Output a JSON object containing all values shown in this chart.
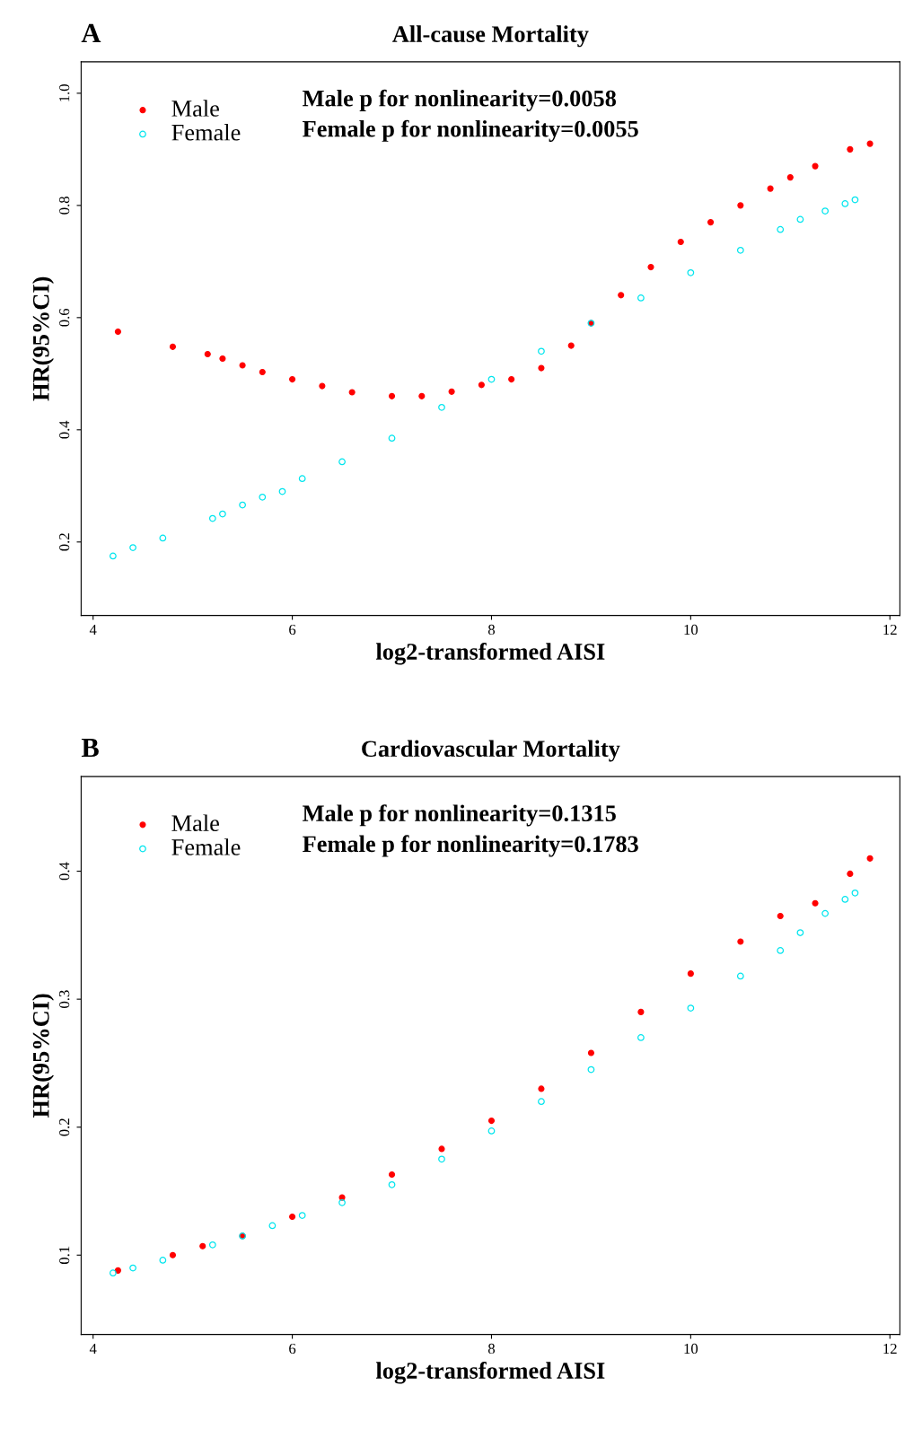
{
  "chart_data": [
    {
      "type": "scatter",
      "title": "All-cause Mortality",
      "xlabel": "log2-transformed AISI",
      "ylabel": "HR(95%CI)",
      "annotations": [
        "A",
        "Male p for nonlinearity=0.0058",
        "Female p for nonlinearity=0.0055"
      ],
      "series": [
        {
          "name": "Male",
          "color": "#ff0000",
          "x": [
            4.25,
            4.8,
            5.15,
            5.3,
            5.5,
            5.7,
            6.0,
            6.3,
            6.6,
            7.0,
            7.3,
            7.6,
            7.9,
            8.2,
            8.5,
            8.8,
            9.0,
            9.3,
            9.6,
            9.9,
            10.2,
            10.5,
            10.8,
            11.0,
            11.25,
            11.6,
            11.8
          ],
          "values": [
            0.575,
            0.548,
            0.535,
            0.527,
            0.515,
            0.503,
            0.49,
            0.478,
            0.467,
            0.46,
            0.46,
            0.468,
            0.48,
            0.49,
            0.51,
            0.55,
            0.59,
            0.64,
            0.69,
            0.735,
            0.77,
            0.8,
            0.83,
            0.85,
            0.87,
            0.9,
            0.91
          ]
        },
        {
          "name": "Female",
          "color": "#00e5ee",
          "x": [
            4.2,
            4.4,
            4.7,
            5.2,
            5.3,
            5.5,
            5.7,
            5.9,
            6.1,
            6.5,
            7.0,
            7.5,
            8.0,
            8.5,
            9.0,
            9.5,
            10.0,
            10.5,
            10.9,
            11.1,
            11.35,
            11.55,
            11.65
          ],
          "values": [
            0.175,
            0.19,
            0.207,
            0.242,
            0.25,
            0.266,
            0.28,
            0.29,
            0.313,
            0.343,
            0.385,
            0.44,
            0.49,
            0.54,
            0.59,
            0.635,
            0.68,
            0.72,
            0.757,
            0.775,
            0.79,
            0.803,
            0.81
          ]
        }
      ],
      "xlim": [
        3.88,
        12.1
      ],
      "xticks": [
        4,
        6,
        8,
        10,
        12
      ],
      "ylim": [
        0.069,
        1.056
      ],
      "yticks": [
        0.2,
        0.4,
        0.6,
        0.8,
        {
          "value": 1.0,
          "label": "1.0"
        }
      ],
      "marker": "circle",
      "legend": "top left",
      "grid": false
    },
    {
      "type": "scatter",
      "title": "Cardiovascular Mortality",
      "xlabel": "log2-transformed AISI",
      "ylabel": "HR(95%CI)",
      "annotations": [
        "B",
        "Male p for nonlinearity=0.1315",
        "Female p for nonlinearity=0.1783"
      ],
      "series": [
        {
          "name": "Male",
          "color": "#ff0000",
          "x": [
            4.25,
            4.8,
            5.1,
            5.5,
            6.0,
            6.5,
            7.0,
            7.5,
            8.0,
            8.5,
            9.0,
            9.5,
            10.0,
            10.5,
            10.9,
            11.25,
            11.6,
            11.8
          ],
          "values": [
            0.088,
            0.1,
            0.107,
            0.115,
            0.13,
            0.145,
            0.163,
            0.183,
            0.205,
            0.23,
            0.258,
            0.29,
            0.32,
            0.345,
            0.365,
            0.375,
            0.398,
            0.41
          ]
        },
        {
          "name": "Female",
          "color": "#00e5ee",
          "x": [
            4.2,
            4.4,
            4.7,
            5.2,
            5.5,
            5.8,
            6.1,
            6.5,
            7.0,
            7.5,
            8.0,
            8.5,
            9.0,
            9.5,
            10.0,
            10.5,
            10.9,
            11.1,
            11.35,
            11.55,
            11.65
          ],
          "values": [
            0.086,
            0.09,
            0.096,
            0.108,
            0.115,
            0.123,
            0.131,
            0.141,
            0.155,
            0.175,
            0.197,
            0.22,
            0.245,
            0.27,
            0.293,
            0.318,
            0.338,
            0.352,
            0.367,
            0.378,
            0.383
          ]
        }
      ],
      "xlim": [
        3.88,
        12.1
      ],
      "xticks": [
        4,
        6,
        8,
        10,
        12
      ],
      "ylim": [
        0.038,
        0.474
      ],
      "yticks": [
        0.1,
        0.2,
        0.3,
        0.4
      ],
      "marker": "circle",
      "legend": "top left",
      "grid": false
    }
  ]
}
